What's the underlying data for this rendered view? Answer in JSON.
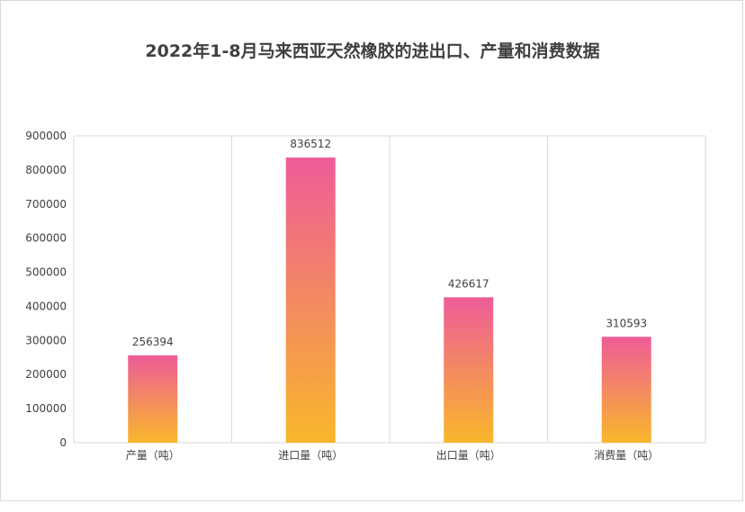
{
  "chart_data": {
    "type": "bar",
    "title": "2022年1-8月马来西亚天然橡胶的进出口、产量和消费数据",
    "categories": [
      "产量（吨）",
      "进口量（吨）",
      "出口量（吨）",
      "消费量（吨）"
    ],
    "values": [
      256394,
      836512,
      426617,
      310593
    ],
    "ylim": [
      0,
      900000
    ],
    "yticks": [
      0,
      100000,
      200000,
      300000,
      400000,
      500000,
      600000,
      700000,
      800000,
      900000
    ],
    "grid": "vertical category separators",
    "legend": "none",
    "colors": {
      "bar_top": "#ee5c98",
      "bar_bottom": "#f9b72b",
      "axis": "#d9d9d9",
      "text": "#404040"
    }
  }
}
